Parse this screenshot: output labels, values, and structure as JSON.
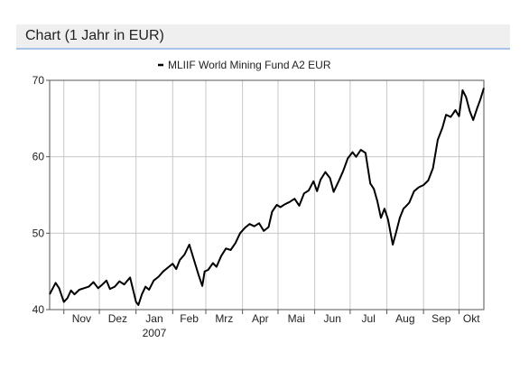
{
  "panel": {
    "title": "Chart (1 Jahr in EUR)"
  },
  "chart_data": {
    "type": "line",
    "title": "",
    "xlabel": "",
    "ylabel": "",
    "ylim": [
      40,
      70
    ],
    "yticks": [
      40,
      50,
      60,
      70
    ],
    "grid": true,
    "legend_position": "top-center",
    "x_tick_labels": [
      "Nov",
      "Dez",
      "Jan",
      "Feb",
      "Mrz",
      "Apr",
      "Mai",
      "Jun",
      "Jul",
      "Aug",
      "Sep",
      "Okt"
    ],
    "x_year_label": "2007",
    "series": [
      {
        "name": "MLIIF World Mining Fund A2 EUR",
        "color": "#000000",
        "x": [
          "2006-10-20",
          "2006-10-25",
          "2006-10-28",
          "2006-11-01",
          "2006-11-04",
          "2006-11-07",
          "2006-11-10",
          "2006-11-14",
          "2006-11-18",
          "2006-11-22",
          "2006-11-26",
          "2006-11-30",
          "2006-12-03",
          "2006-12-07",
          "2006-12-10",
          "2006-12-14",
          "2006-12-18",
          "2006-12-22",
          "2006-12-27",
          "2007-01-01",
          "2007-01-03",
          "2007-01-06",
          "2007-01-09",
          "2007-01-12",
          "2007-01-16",
          "2007-01-20",
          "2007-01-24",
          "2007-01-28",
          "2007-02-01",
          "2007-02-04",
          "2007-02-07",
          "2007-02-11",
          "2007-02-15",
          "2007-02-19",
          "2007-02-23",
          "2007-02-26",
          "2007-02-28",
          "2007-03-03",
          "2007-03-07",
          "2007-03-10",
          "2007-03-14",
          "2007-03-18",
          "2007-03-22",
          "2007-03-26",
          "2007-03-30",
          "2007-04-03",
          "2007-04-07",
          "2007-04-11",
          "2007-04-15",
          "2007-04-19",
          "2007-04-23",
          "2007-04-26",
          "2007-04-30",
          "2007-05-03",
          "2007-05-07",
          "2007-05-11",
          "2007-05-15",
          "2007-05-19",
          "2007-05-23",
          "2007-05-27",
          "2007-05-31",
          "2007-06-03",
          "2007-06-06",
          "2007-06-10",
          "2007-06-14",
          "2007-06-17",
          "2007-06-21",
          "2007-06-25",
          "2007-06-29",
          "2007-07-03",
          "2007-07-06",
          "2007-07-10",
          "2007-07-14",
          "2007-07-18",
          "2007-07-21",
          "2007-07-24",
          "2007-07-27",
          "2007-07-30",
          "2007-08-02",
          "2007-08-06",
          "2007-08-09",
          "2007-08-12",
          "2007-08-15",
          "2007-08-17",
          "2007-08-20",
          "2007-08-24",
          "2007-08-28",
          "2007-09-01",
          "2007-09-05",
          "2007-09-09",
          "2007-09-13",
          "2007-09-17",
          "2007-09-20",
          "2007-09-24",
          "2007-09-28",
          "2007-10-01",
          "2007-10-04",
          "2007-10-07",
          "2007-10-10",
          "2007-10-13",
          "2007-10-16",
          "2007-10-19",
          "2007-10-22"
        ],
        "y": [
          42.0,
          43.5,
          42.8,
          41.0,
          41.5,
          42.5,
          42.0,
          42.6,
          42.8,
          43.0,
          43.6,
          42.8,
          43.2,
          43.8,
          42.7,
          43.0,
          43.7,
          43.3,
          44.2,
          41.0,
          40.6,
          42.0,
          43.0,
          42.6,
          43.8,
          44.3,
          45.0,
          45.5,
          46.0,
          45.3,
          46.5,
          47.2,
          48.5,
          46.5,
          44.5,
          43.1,
          45.0,
          45.2,
          46.1,
          45.6,
          47.0,
          48.0,
          47.8,
          48.7,
          50.0,
          50.7,
          51.2,
          50.9,
          51.3,
          50.3,
          50.8,
          52.8,
          53.7,
          53.4,
          53.8,
          54.1,
          54.5,
          53.6,
          55.2,
          55.6,
          56.8,
          55.5,
          57.0,
          58.0,
          57.2,
          55.4,
          56.7,
          58.1,
          59.8,
          60.6,
          60.0,
          60.9,
          60.5,
          56.5,
          55.8,
          54.2,
          52.0,
          53.2,
          51.8,
          48.5,
          50.2,
          52.0,
          53.2,
          53.5,
          54.0,
          55.5,
          56.0,
          56.3,
          56.9,
          58.5,
          62.2,
          63.8,
          65.5,
          65.2,
          66.1,
          65.3,
          68.7,
          67.8,
          66.0,
          64.8,
          66.2,
          67.5,
          69.0
        ]
      }
    ]
  }
}
